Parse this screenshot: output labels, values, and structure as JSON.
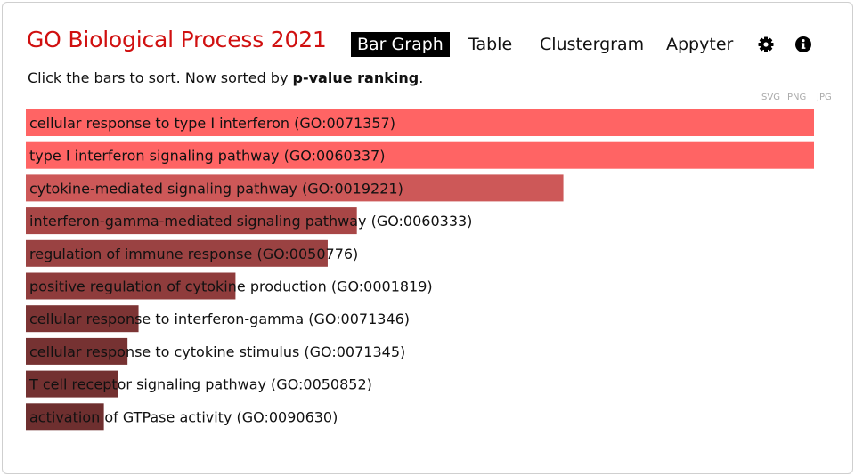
{
  "header": {
    "title": "GO Biological Process 2021",
    "nav": [
      {
        "label": "Bar Graph",
        "active": true
      },
      {
        "label": "Table",
        "active": false
      },
      {
        "label": "Clustergram",
        "active": false
      },
      {
        "label": "Appyter",
        "active": false
      }
    ],
    "icons": [
      "gear-icon",
      "info-icon"
    ]
  },
  "instructions": {
    "prefix": "Click the bars to sort. Now sorted by ",
    "sort_key": "p-value ranking",
    "suffix": "."
  },
  "exports": [
    "SVG",
    "PNG",
    "JPG"
  ],
  "chart_data": {
    "type": "bar",
    "orientation": "horizontal",
    "sorted_by": "p-value ranking",
    "categories": [
      "cellular response to type I interferon (GO:0071357)",
      "type I interferon signaling pathway (GO:0060337)",
      "cytokine-mediated signaling pathway (GO:0019221)",
      "interferon-gamma-mediated signaling pathway (GO:0060333)",
      "regulation of immune response (GO:0050776)",
      "positive regulation of cytokine production (GO:0001819)",
      "cellular response to interferon-gamma (GO:0071346)",
      "cellular response to cytokine stimulus (GO:0071345)",
      "T cell receptor signaling pathway (GO:0050852)",
      "activation of GTPase activity (GO:0090630)"
    ],
    "values": [
      1.0,
      1.0,
      0.682,
      0.42,
      0.383,
      0.266,
      0.143,
      0.129,
      0.117,
      0.099
    ],
    "colors": [
      "#ff6464",
      "#ff6464",
      "#cd5858",
      "#a84646",
      "#9a4242",
      "#8f3c3c",
      "#7c3434",
      "#763232",
      "#733131",
      "#6e2f2f"
    ]
  }
}
